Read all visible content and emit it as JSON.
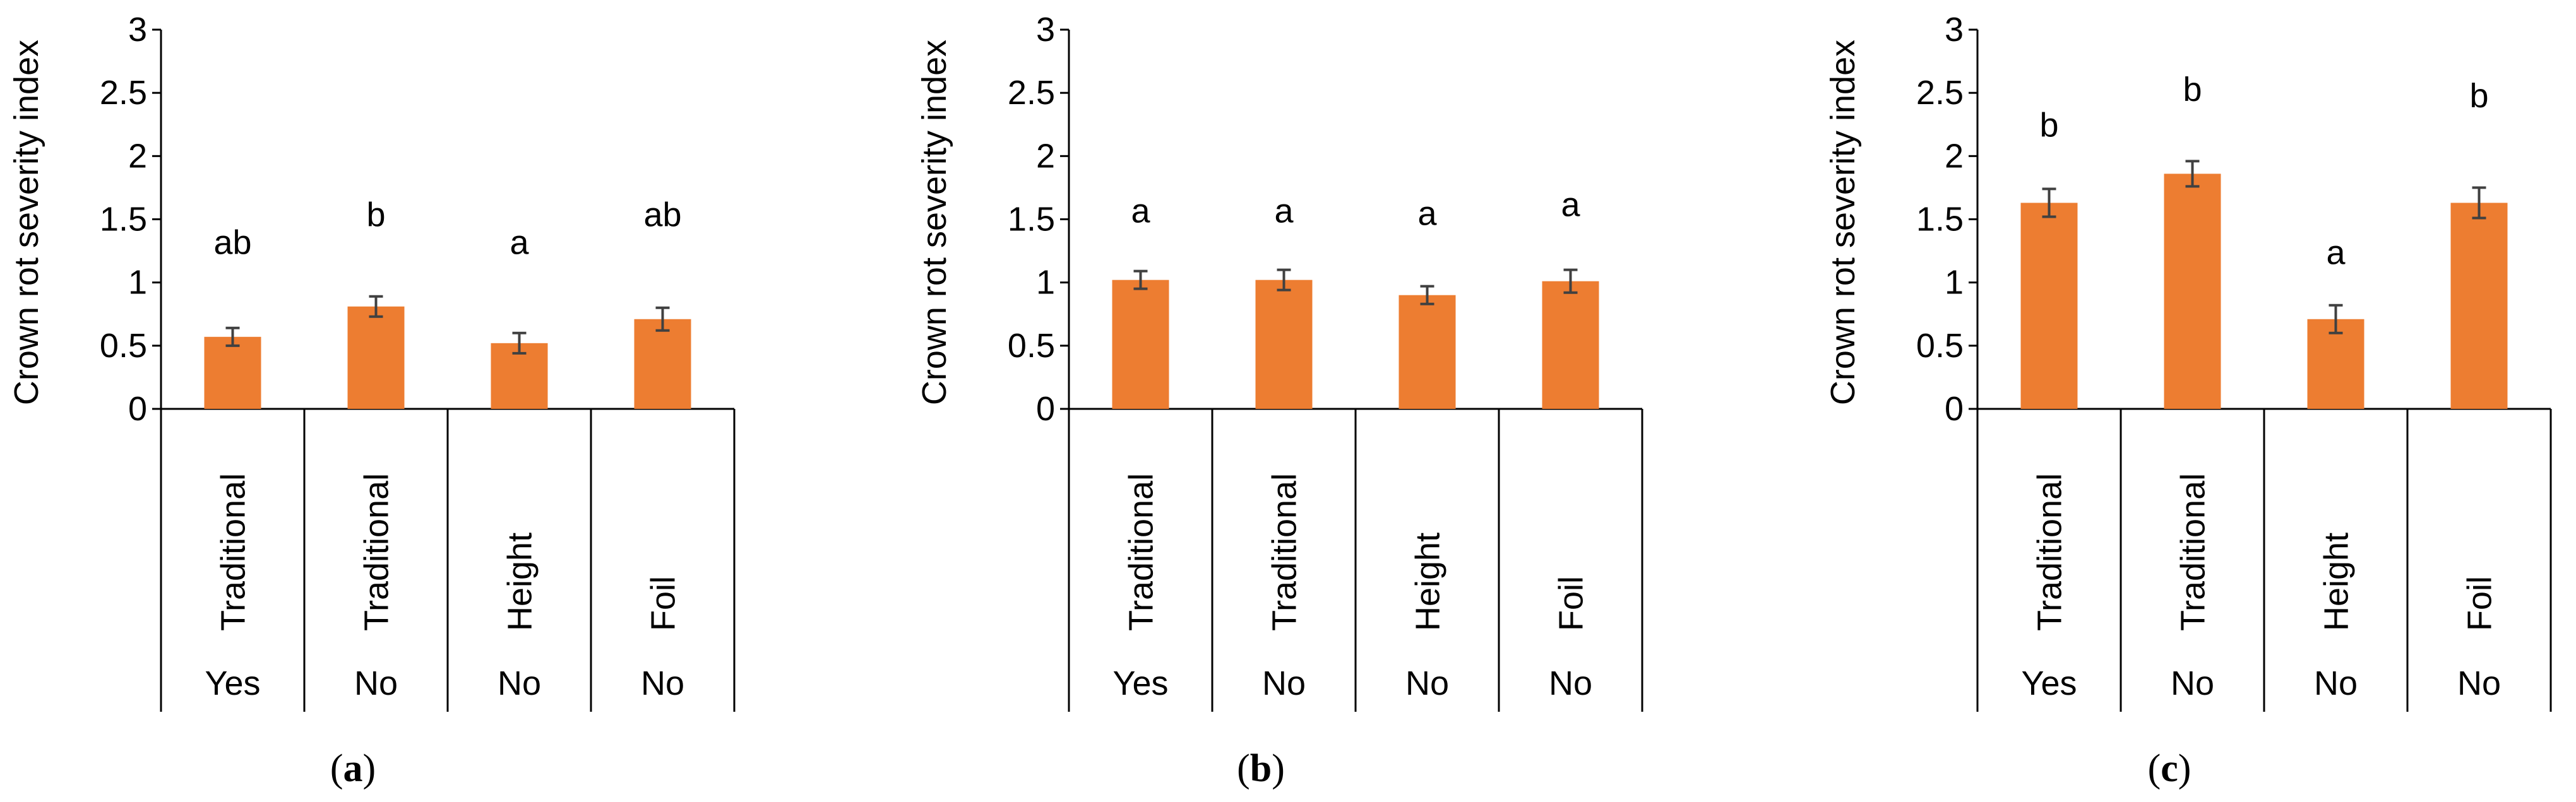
{
  "colors": {
    "bar": "#ED7D31",
    "axis": "#000000",
    "errorbar": "#404040"
  },
  "chart_data": [
    {
      "type": "bar",
      "caption": {
        "open": "(",
        "letter": "a",
        "close": ")"
      },
      "ylabel": "Crown rot severity index",
      "ylim": [
        0,
        3
      ],
      "yticks": [
        "0",
        "0.5",
        "1",
        "1.5",
        "2",
        "2.5",
        "3"
      ],
      "categories": [
        [
          "Traditional",
          "Yes"
        ],
        [
          "Traditional",
          "No"
        ],
        [
          "Height",
          "No"
        ],
        [
          "Foil",
          "No"
        ]
      ],
      "values": [
        0.57,
        0.81,
        0.52,
        0.71
      ],
      "errors": [
        0.07,
        0.08,
        0.08,
        0.09
      ],
      "significance": [
        "ab",
        "b",
        "a",
        "ab"
      ],
      "significance_y": [
        1.32,
        1.54,
        1.32,
        1.54
      ]
    },
    {
      "type": "bar",
      "caption": {
        "open": "(",
        "letter": "b",
        "close": ")"
      },
      "ylabel": "Crown rot severity index",
      "ylim": [
        0,
        3
      ],
      "yticks": [
        "0",
        "0.5",
        "1",
        "1.5",
        "2",
        "2.5",
        "3"
      ],
      "categories": [
        [
          "Traditional",
          "Yes"
        ],
        [
          "Traditional",
          "No"
        ],
        [
          "Height",
          "No"
        ],
        [
          "Foil",
          "No"
        ]
      ],
      "values": [
        1.02,
        1.02,
        0.9,
        1.01
      ],
      "errors": [
        0.07,
        0.08,
        0.07,
        0.09
      ],
      "significance": [
        "a",
        "a",
        "a",
        "a"
      ],
      "significance_y": [
        1.57,
        1.57,
        1.55,
        1.62
      ]
    },
    {
      "type": "bar",
      "caption": {
        "open": "(",
        "letter": "c",
        "close": ")"
      },
      "ylabel": "Crown rot severity index",
      "ylim": [
        0,
        3
      ],
      "yticks": [
        "0",
        "0.5",
        "1",
        "1.5",
        "2",
        "2.5",
        "3"
      ],
      "categories": [
        [
          "Traditional",
          "Yes"
        ],
        [
          "Traditional",
          "No"
        ],
        [
          "Height",
          "No"
        ],
        [
          "Foil",
          "No"
        ]
      ],
      "values": [
        1.63,
        1.86,
        0.71,
        1.63
      ],
      "errors": [
        0.11,
        0.1,
        0.11,
        0.12
      ],
      "significance": [
        "b",
        "b",
        "a",
        "b"
      ],
      "significance_y": [
        2.25,
        2.53,
        1.24,
        2.48
      ]
    }
  ]
}
